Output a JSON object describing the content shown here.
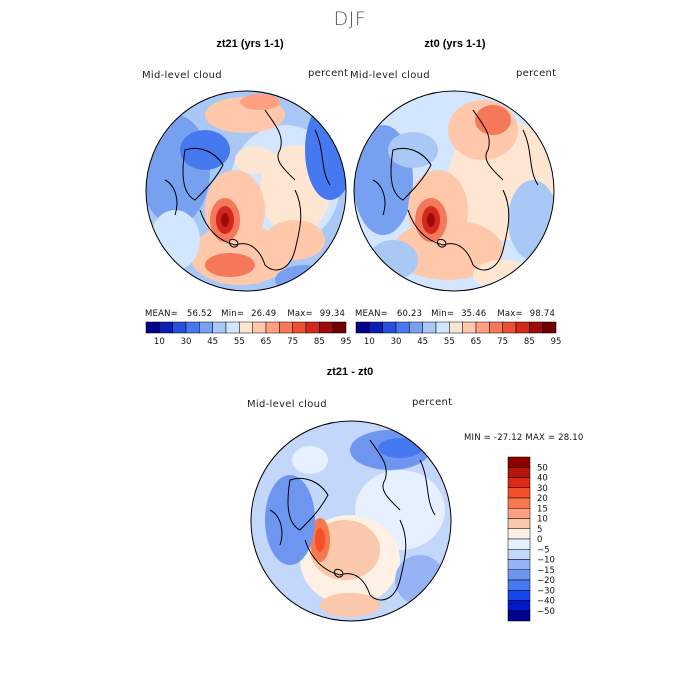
{
  "figure": {
    "title": "DJF"
  },
  "colors": {
    "abs_palette": [
      "#00008c",
      "#0a1eb4",
      "#2850dc",
      "#4678f0",
      "#78a0f0",
      "#aac8f5",
      "#d2e6ff",
      "#ffe6d2",
      "#ffc8aa",
      "#ffa082",
      "#f5785a",
      "#eb5032",
      "#d2281e",
      "#a00a0a",
      "#6e0000"
    ],
    "diff_palette": [
      "#00008c",
      "#0019c8",
      "#1446eb",
      "#4678f0",
      "#6e96f0",
      "#96b4f5",
      "#c3d7fa",
      "#e6f0ff",
      "#fff0e6",
      "#fac8aa",
      "#ffa082",
      "#fa7850",
      "#f55028",
      "#dc2814",
      "#b4140a",
      "#8c0000"
    ],
    "coast": "#000000",
    "border": "#000000"
  },
  "panels": [
    {
      "title": "zt21 (yrs 1-1)",
      "label": "Mid-level cloud",
      "units": "percent",
      "stats": {
        "mean_label": "MEAN=",
        "mean": "56.52",
        "min_label": "Min=",
        "min": "26.49",
        "max_label": "Max=",
        "max": "99.34"
      },
      "colorbar_ticks": [
        "10",
        "30",
        "45",
        "55",
        "65",
        "75",
        "85",
        "95"
      ]
    },
    {
      "title": "zt0 (yrs 1-1)",
      "label": "Mid-level cloud",
      "units": "percent",
      "stats": {
        "mean_label": "MEAN=",
        "mean": "60.23",
        "min_label": "Min=",
        "min": "35.46",
        "max_label": "Max=",
        "max": "98.74"
      },
      "colorbar_ticks": [
        "10",
        "30",
        "45",
        "55",
        "65",
        "75",
        "85",
        "95"
      ]
    }
  ],
  "diff_panel": {
    "title": "zt21 - zt0",
    "label": "Mid-level cloud",
    "units": "percent",
    "minmax": "MIN = -27.12 MAX =  28.10",
    "colorbar_ticks": [
      "50",
      "40",
      "30",
      "20",
      "15",
      "10",
      "5",
      "0",
      "−5",
      "−10",
      "−15",
      "−20",
      "−30",
      "−40",
      "−50"
    ]
  }
}
